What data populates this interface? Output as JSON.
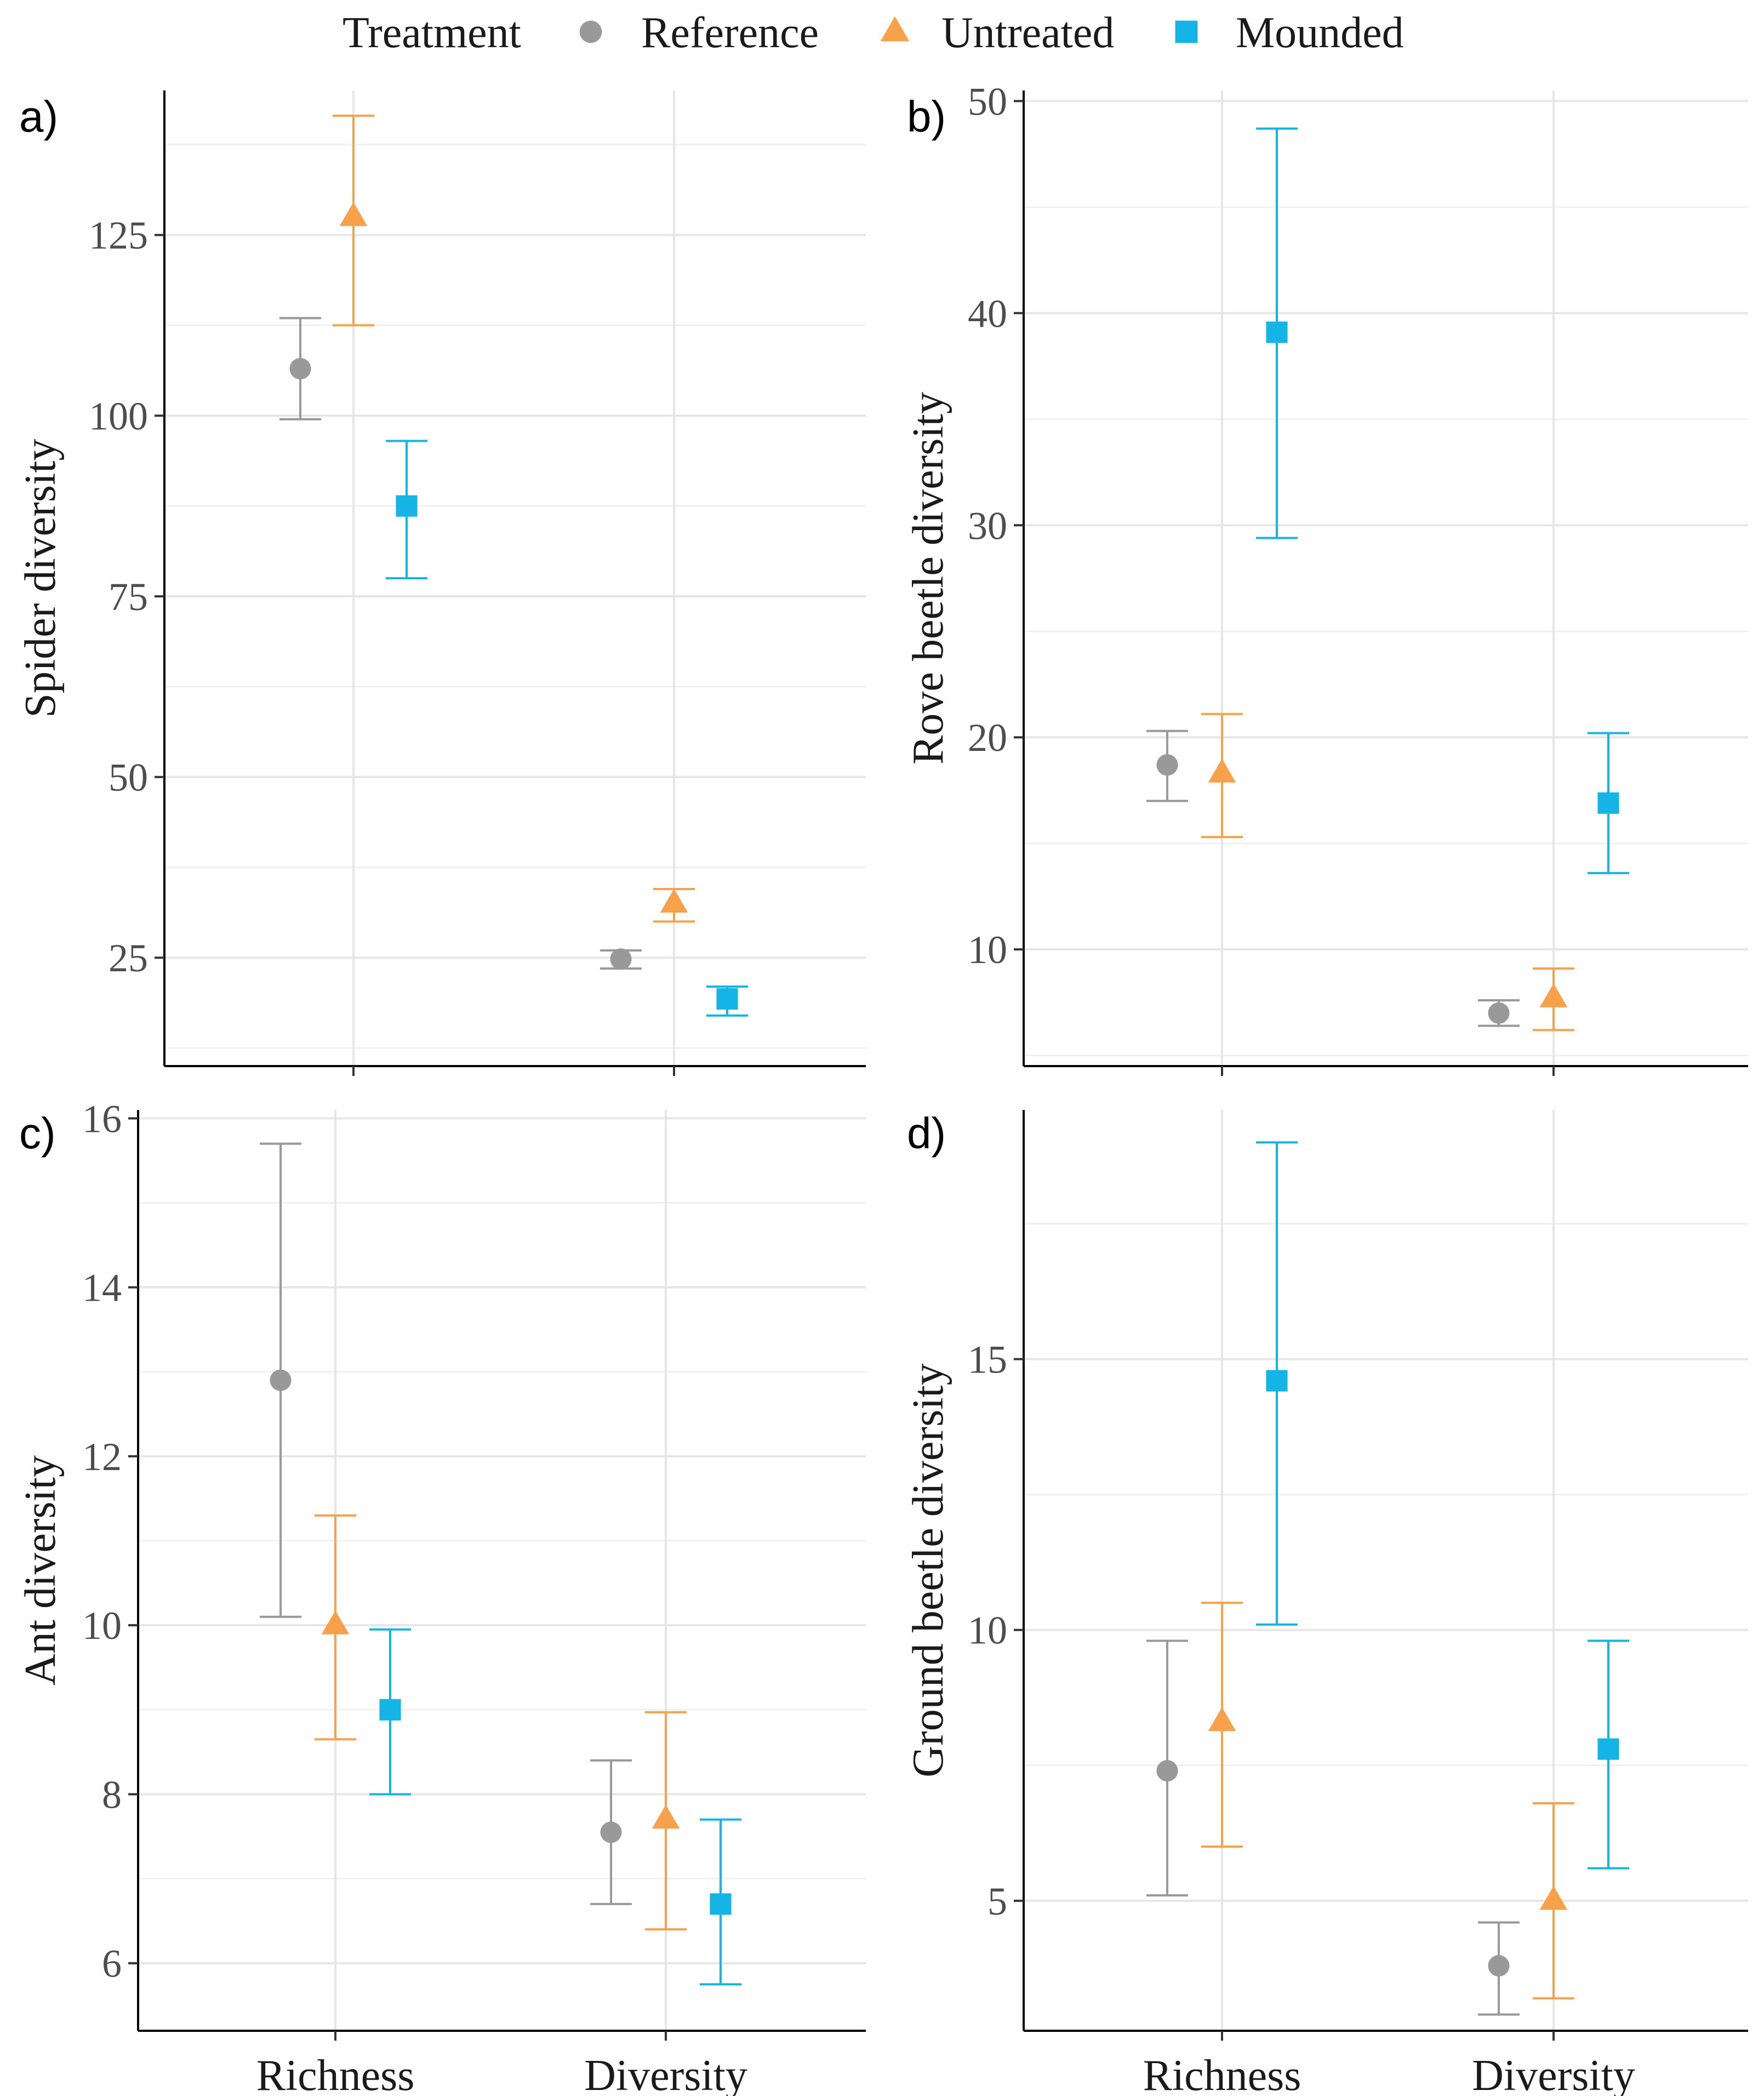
{
  "legend": {
    "title": "Treatment",
    "items": [
      {
        "name": "Reference",
        "color": "#999999",
        "shape": "circle"
      },
      {
        "name": "Untreated",
        "color": "#f7a14a",
        "shape": "triangle"
      },
      {
        "name": "Mounded",
        "color": "#14b4e6",
        "shape": "square"
      }
    ]
  },
  "chart_data": [
    {
      "type": "scatter",
      "panel": "a)",
      "title": "",
      "xlabel": "",
      "ylabel": "Spider diversity",
      "categories": [
        "Richness",
        "Diversity"
      ],
      "show_category_labels": false,
      "ylim": [
        10,
        145
      ],
      "yticks": [
        25,
        50,
        75,
        100,
        125
      ],
      "minor_yticks": [
        37.5,
        62.5,
        87.5,
        112.5,
        137.5,
        12.5
      ],
      "series": [
        {
          "name": "Reference",
          "values": [
            106.5,
            24.8
          ],
          "lower": [
            99.5,
            23.5
          ],
          "upper": [
            113.5,
            26.0
          ]
        },
        {
          "name": "Untreated",
          "values": [
            127.5,
            32.5
          ],
          "lower": [
            112.5,
            30.0
          ],
          "upper": [
            141.5,
            34.5
          ]
        },
        {
          "name": "Mounded",
          "values": [
            87.5,
            19.3
          ],
          "lower": [
            77.5,
            17.0
          ],
          "upper": [
            96.5,
            21.0
          ]
        }
      ]
    },
    {
      "type": "scatter",
      "panel": "b)",
      "title": "",
      "xlabel": "",
      "ylabel": "Rove beetle diversity",
      "categories": [
        "Richness",
        "Diversity"
      ],
      "show_category_labels": false,
      "ylim": [
        4.5,
        50.5
      ],
      "yticks": [
        10,
        20,
        30,
        40,
        50
      ],
      "minor_yticks": [
        5,
        15,
        25,
        35,
        45
      ],
      "series": [
        {
          "name": "Reference",
          "values": [
            18.7,
            7.0
          ],
          "lower": [
            17.0,
            6.4
          ],
          "upper": [
            20.3,
            7.6
          ]
        },
        {
          "name": "Untreated",
          "values": [
            18.3,
            7.7
          ],
          "lower": [
            15.3,
            6.2
          ],
          "upper": [
            21.1,
            9.1
          ]
        },
        {
          "name": "Mounded",
          "values": [
            39.1,
            16.9
          ],
          "lower": [
            29.4,
            13.6
          ],
          "upper": [
            48.7,
            20.2
          ]
        }
      ]
    },
    {
      "type": "scatter",
      "panel": "c)",
      "title": "",
      "xlabel": "",
      "ylabel": "Ant diversity",
      "categories": [
        "Richness",
        "Diversity"
      ],
      "show_category_labels": true,
      "ylim": [
        5.2,
        16.1
      ],
      "yticks": [
        6,
        8,
        10,
        12,
        14,
        16
      ],
      "minor_yticks": [
        7,
        9,
        11,
        13,
        15
      ],
      "series": [
        {
          "name": "Reference",
          "values": [
            12.9,
            7.55
          ],
          "lower": [
            10.1,
            6.7
          ],
          "upper": [
            15.7,
            8.4
          ]
        },
        {
          "name": "Untreated",
          "values": [
            10.0,
            7.7
          ],
          "lower": [
            8.65,
            6.4
          ],
          "upper": [
            11.3,
            8.97
          ]
        },
        {
          "name": "Mounded",
          "values": [
            9.0,
            6.7
          ],
          "lower": [
            8.0,
            5.75
          ],
          "upper": [
            9.95,
            7.7
          ]
        }
      ]
    },
    {
      "type": "scatter",
      "panel": "d)",
      "title": "",
      "xlabel": "",
      "ylabel": "Ground beetle diversity",
      "categories": [
        "Richness",
        "Diversity"
      ],
      "show_category_labels": true,
      "ylim": [
        2.6,
        19.6
      ],
      "yticks": [
        5,
        10,
        15
      ],
      "minor_yticks": [
        2.5,
        7.5,
        12.5,
        17.5
      ],
      "series": [
        {
          "name": "Reference",
          "values": [
            7.4,
            3.8
          ],
          "lower": [
            5.1,
            2.9
          ],
          "upper": [
            9.8,
            4.6
          ]
        },
        {
          "name": "Untreated",
          "values": [
            8.3,
            5.0
          ],
          "lower": [
            6.0,
            3.2
          ],
          "upper": [
            10.5,
            6.8
          ]
        },
        {
          "name": "Mounded",
          "values": [
            14.6,
            7.8
          ],
          "lower": [
            10.1,
            5.6
          ],
          "upper": [
            19.0,
            9.8
          ]
        }
      ]
    }
  ]
}
